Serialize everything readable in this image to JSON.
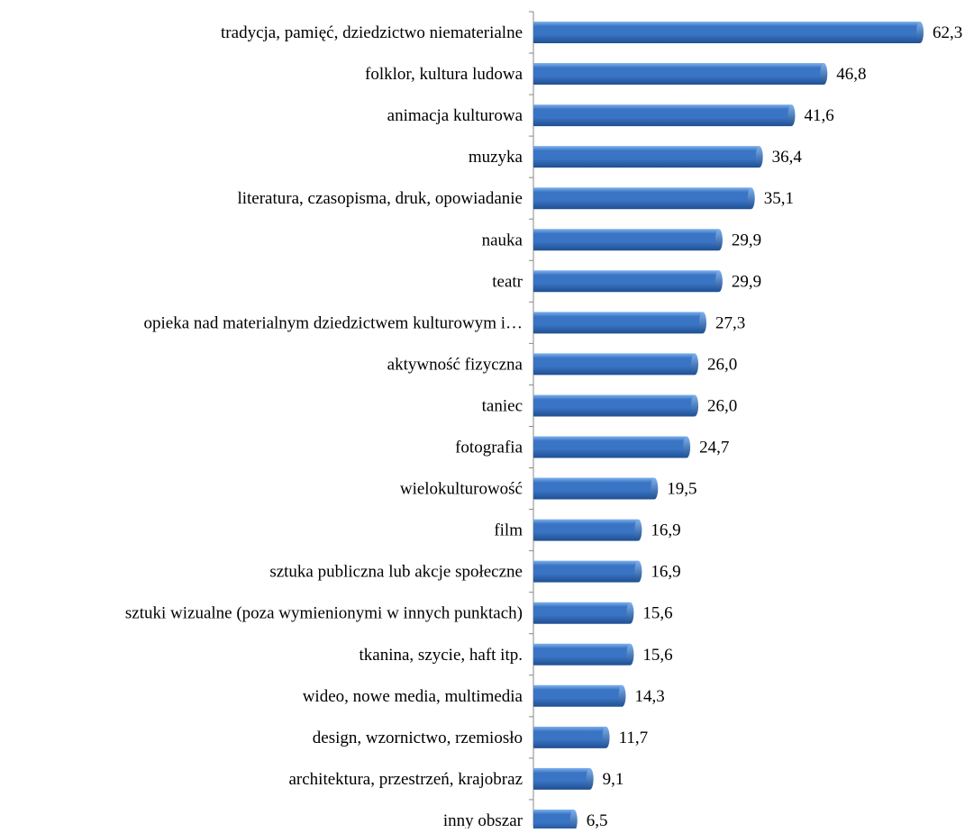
{
  "chart_data": {
    "type": "bar",
    "orientation": "horizontal",
    "title": "",
    "xlabel": "",
    "ylabel": "",
    "xlim": [
      0,
      65
    ],
    "grid": false,
    "legend": "none",
    "value_label_format": "one decimal, comma separator",
    "bar_color": "#3a74c4",
    "bar_highlight_color": "#7fb2ec",
    "bar_shadow_color": "#1f4f91",
    "axis_color": "#888888",
    "categories": [
      "tradycja, pamięć, dziedzictwo niematerialne",
      "folklor, kultura ludowa",
      "animacja kulturowa",
      "muzyka",
      "literatura, czasopisma, druk, opowiadanie",
      "nauka",
      "teatr",
      "opieka nad materialnym dziedzictwem kulturowym i…",
      "aktywność fizyczna",
      "taniec",
      "fotografia",
      "wielokulturowość",
      "film",
      "sztuka publiczna lub akcje społeczne",
      "sztuki wizualne (poza wymienionymi w innych punktach)",
      "tkanina, szycie, haft itp.",
      "wideo, nowe media, multimedia",
      "design, wzornictwo, rzemiosło",
      "architektura, przestrzeń, krajobraz",
      "inny obszar"
    ],
    "values": [
      62.3,
      46.8,
      41.6,
      36.4,
      35.1,
      29.9,
      29.9,
      27.3,
      26.0,
      26.0,
      24.7,
      19.5,
      16.9,
      16.9,
      15.6,
      15.6,
      14.3,
      11.7,
      9.1,
      6.5
    ],
    "value_labels": [
      "62,3",
      "46,8",
      "41,6",
      "36,4",
      "35,1",
      "29,9",
      "29,9",
      "27,3",
      "26,0",
      "26,0",
      "24,7",
      "19,5",
      "16,9",
      "16,9",
      "15,6",
      "15,6",
      "14,3",
      "11,7",
      "9,1",
      "6,5"
    ]
  }
}
